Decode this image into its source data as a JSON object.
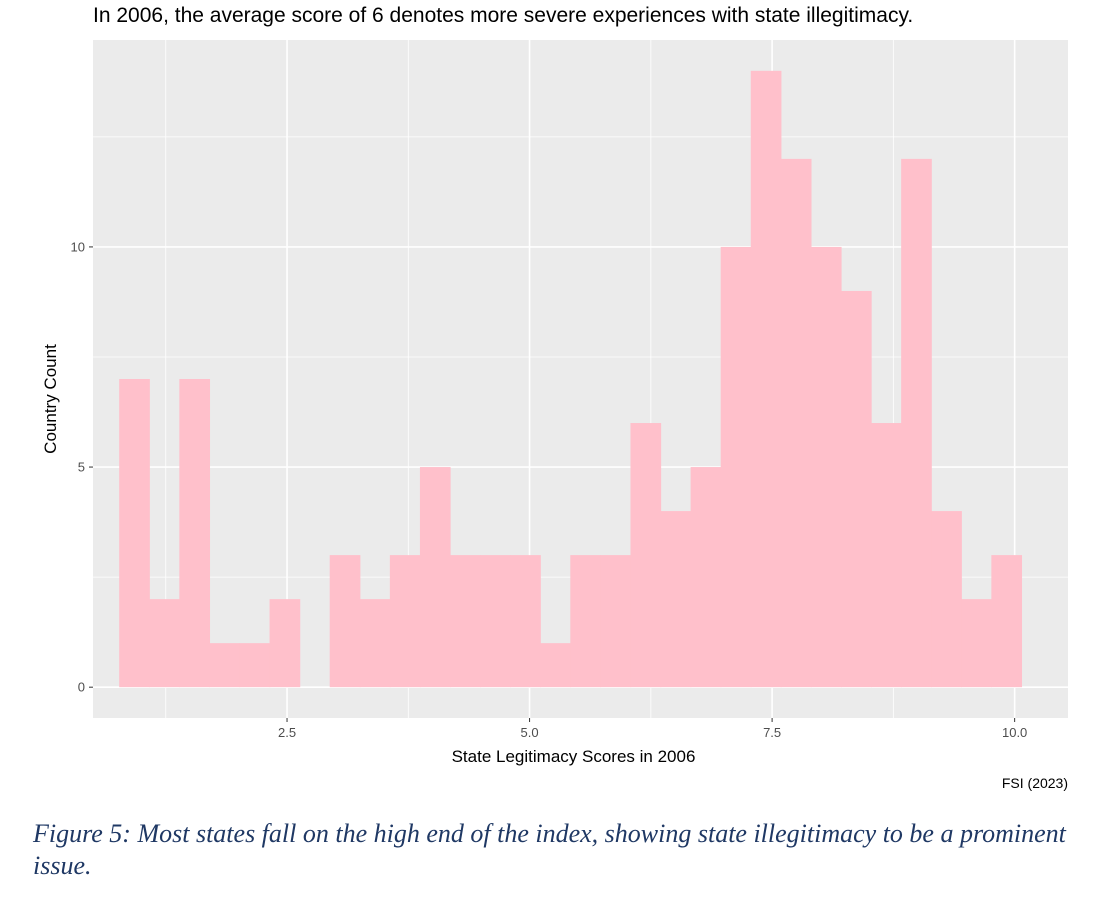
{
  "chart_data": {
    "type": "bar",
    "title": "In 2006, the average score of 6 denotes more severe experiences with state illegitimacy.",
    "xlabel": "State Legitimacy Scores in 2006",
    "ylabel": "Country Count",
    "caption": "FSI (2023)",
    "xlim": [
      0.5,
      10.55
    ],
    "ylim": [
      -0.7,
      14.7
    ],
    "x_ticks": [
      2.5,
      5.0,
      7.5,
      10.0
    ],
    "x_tick_labels": [
      "2.5",
      "5.0",
      "7.5",
      "10.0"
    ],
    "y_ticks": [
      0,
      5,
      10
    ],
    "y_tick_labels": [
      "0",
      "5",
      "10"
    ],
    "bin_width": 0.31,
    "bins_start": [
      0.77,
      1.08,
      1.39,
      1.7,
      2.01,
      2.32,
      2.63,
      2.94,
      3.25,
      3.56,
      3.87,
      4.18,
      4.49,
      4.8,
      5.11,
      5.42,
      5.73,
      6.04,
      6.35,
      6.66,
      6.97,
      7.28,
      7.59,
      7.9,
      8.21,
      8.52,
      8.83,
      9.14,
      9.45,
      9.76
    ],
    "values": [
      7,
      2,
      7,
      1,
      1,
      2,
      0,
      3,
      2,
      3,
      5,
      3,
      3,
      3,
      1,
      3,
      3,
      6,
      4,
      5,
      10,
      14,
      12,
      10,
      9,
      6,
      12,
      4,
      2,
      3
    ],
    "bar_color": "#ffc0cb",
    "panel_color": "#ebebeb",
    "grid": true
  },
  "figure_caption": "Figure 5: Most states fall on the high end of the index, showing state illegitimacy to be a prominent issue."
}
